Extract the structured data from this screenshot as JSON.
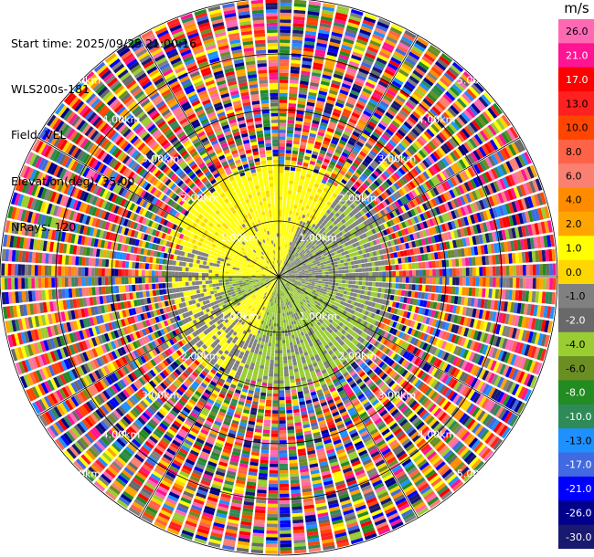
{
  "info": {
    "start_time": "Start time: 2025/09/25 21:00:16",
    "instrument": "WLS200s-181",
    "field": "Field: VEL",
    "elevation": "Elevation(deg): 35.00",
    "nrays": "NRays: 120"
  },
  "colorbar": {
    "unit": "m/s",
    "labels": [
      "26.0",
      "21.0",
      "17.0",
      "13.0",
      "10.0",
      "8.0",
      "6.0",
      "4.0",
      "2.0",
      "1.0",
      "0.0",
      "-1.0",
      "-2.0",
      "-4.0",
      "-6.0",
      "-8.0",
      "-10.0",
      "-13.0",
      "-17.0",
      "-21.0",
      "-26.0",
      "-30.0"
    ],
    "colors": [
      "#ff69b4",
      "#ff1493",
      "#ff0000",
      "#ff2020",
      "#ff4500",
      "#ff6347",
      "#fa8072",
      "#ff8c00",
      "#ffa500",
      "#ffff00",
      "#ffd700",
      "#808080",
      "#696969",
      "#9acd32",
      "#6b8e23",
      "#228b22",
      "#2e8b57",
      "#1e90ff",
      "#4169e1",
      "#0000ff",
      "#00008b",
      "#191970"
    ]
  },
  "chart_data": {
    "type": "ppi",
    "field": "VEL",
    "units": "m/s",
    "elevation_deg": 35.0,
    "nrays": 120,
    "range_rings_km": [
      1.0,
      2.0,
      3.0,
      4.0,
      5.0
    ],
    "ring_labels": [
      "1.00km",
      "2.00km",
      "3.00km",
      "4.00km",
      "5.00km"
    ],
    "colorbar_range": [
      -30,
      26
    ],
    "note_regions": [
      {
        "sector": "north-west",
        "range_km": [
          0,
          2.0
        ],
        "velocity_ms": [
          2,
          4
        ]
      },
      {
        "sector": "east/south",
        "range_km": [
          0,
          2.0
        ],
        "velocity_ms": [
          -2,
          0
        ]
      },
      {
        "sector": "all",
        "range_km": [
          2.0,
          5.0
        ],
        "velocity_ms": "noise"
      }
    ]
  }
}
